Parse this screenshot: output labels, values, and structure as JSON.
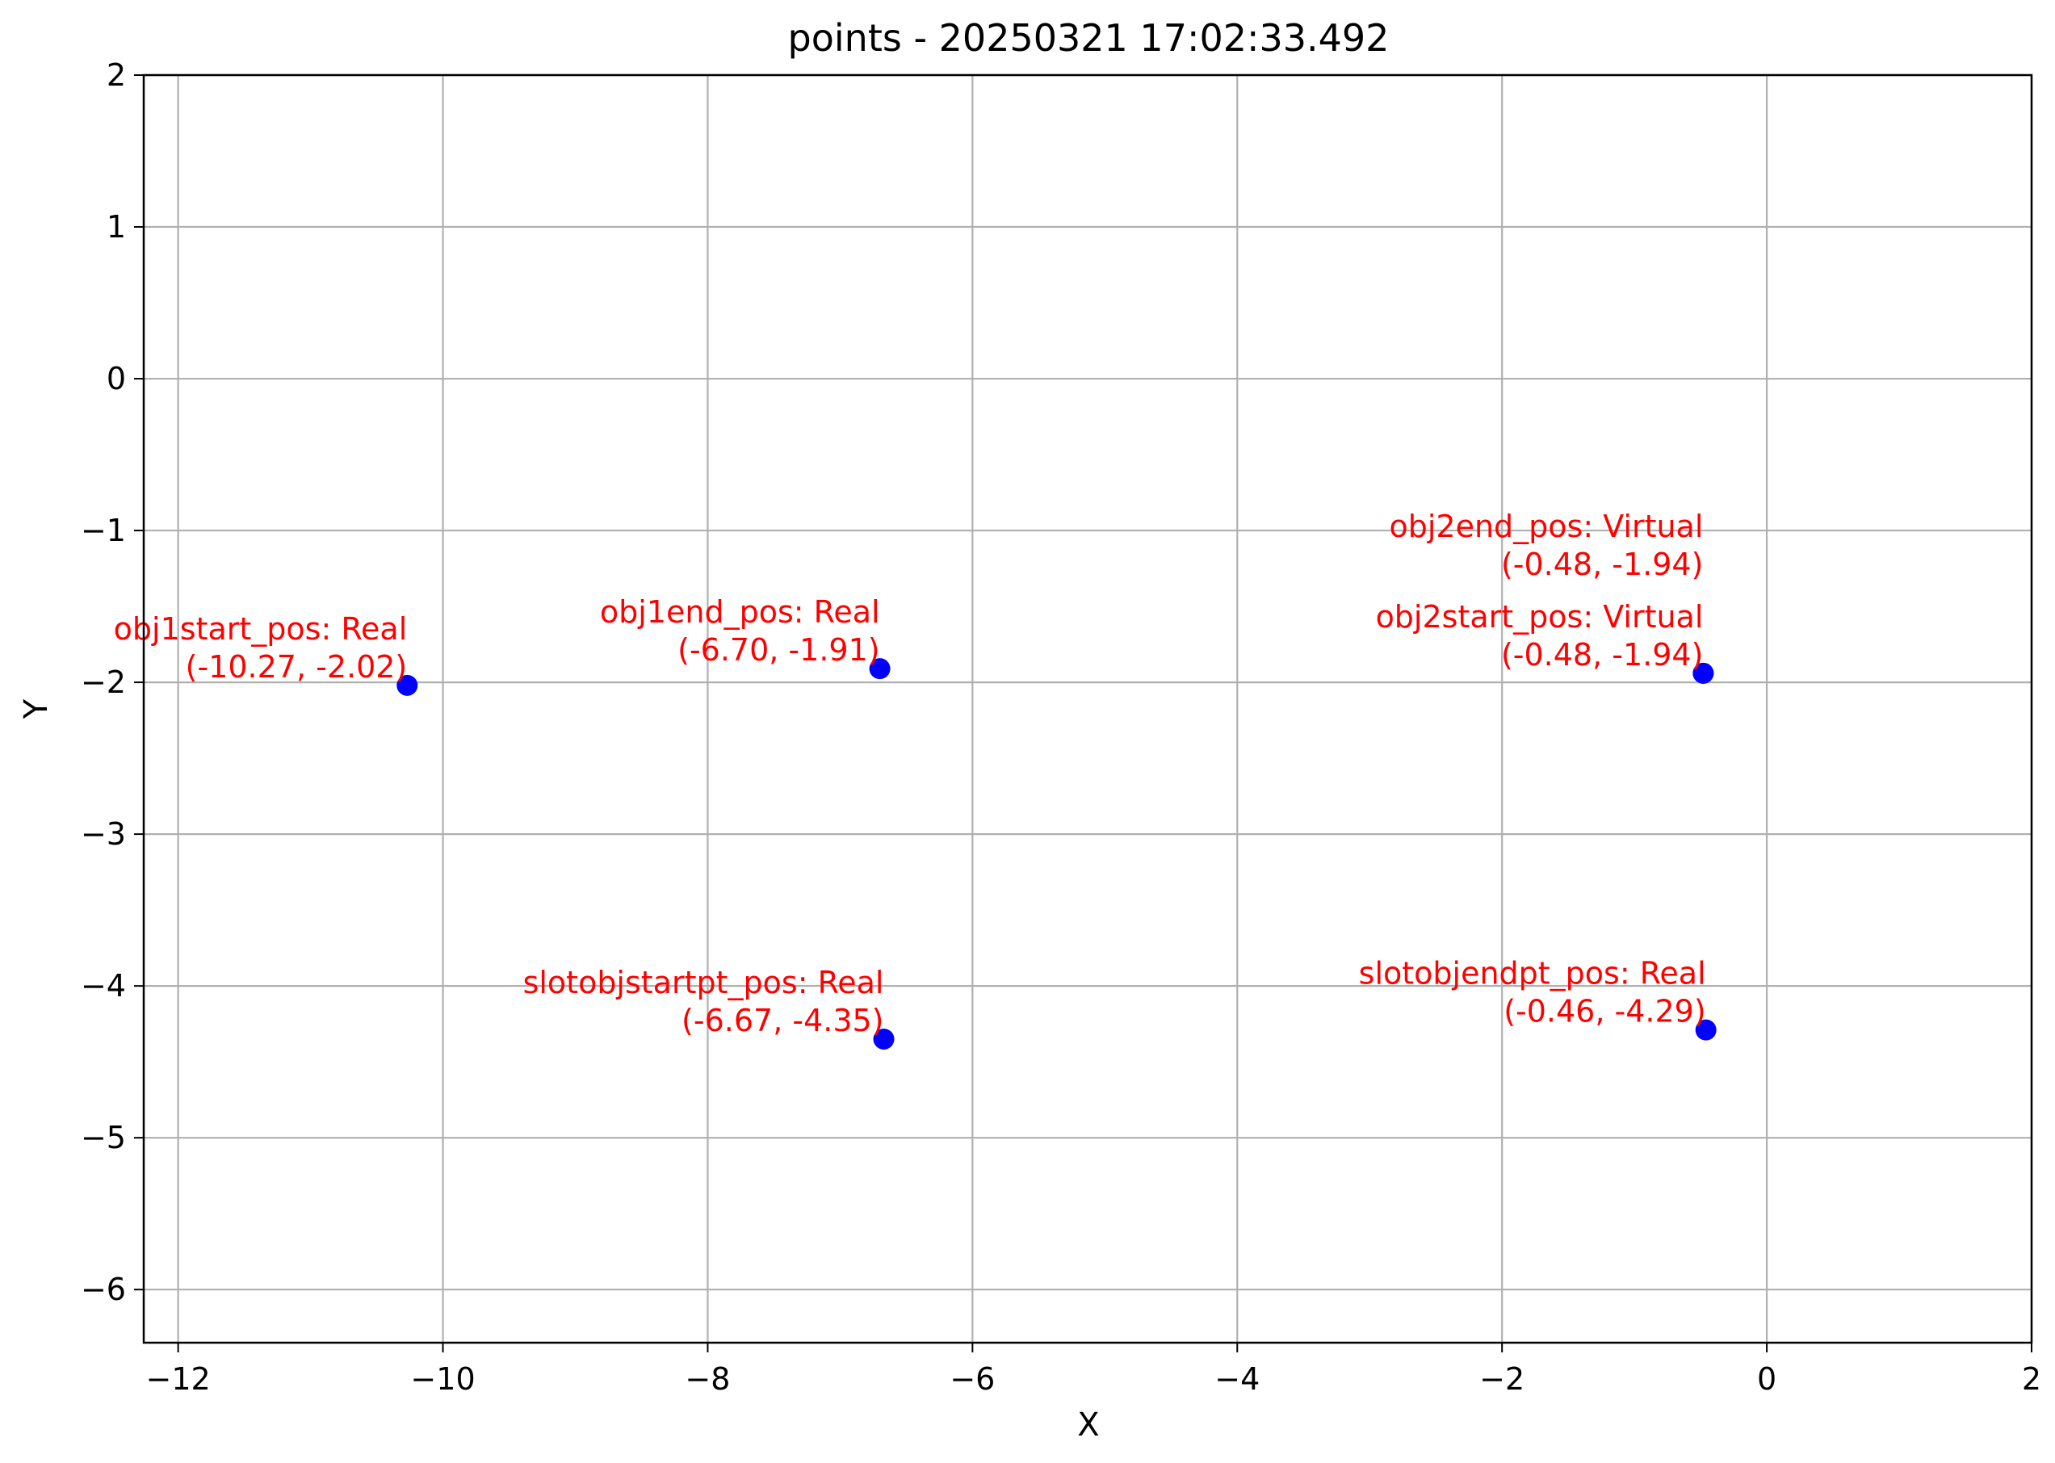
{
  "chart_data": {
    "type": "scatter",
    "title": "points - 20250321 17:02:33.492",
    "xlabel": "X",
    "ylabel": "Y",
    "xlim": [
      -12.26,
      2.0
    ],
    "ylim": [
      -6.35,
      2.0
    ],
    "grid": true,
    "x_ticks": [
      -12,
      -10,
      -8,
      -6,
      -4,
      -2,
      0,
      2
    ],
    "y_ticks": [
      -6,
      -5,
      -4,
      -3,
      -2,
      -1,
      0,
      1,
      2
    ],
    "x_tick_labels": [
      "−12",
      "−10",
      "−8",
      "−6",
      "−4",
      "−2",
      "0",
      "2"
    ],
    "y_tick_labels": [
      "−6",
      "−5",
      "−4",
      "−3",
      "−2",
      "−1",
      "0",
      "1",
      "2"
    ],
    "point_color": "#0000ff",
    "annotation_color": "#ff0000",
    "points": [
      {
        "label_line1": "obj1start_pos: Real",
        "label_line2": "(-10.27, -2.02)",
        "x": -10.27,
        "y": -2.02
      },
      {
        "label_line1": "obj1end_pos: Real",
        "label_line2": "(-6.70, -1.91)",
        "x": -6.7,
        "y": -1.91
      },
      {
        "label_line1": "obj2start_pos: Virtual",
        "label_line2": "(-0.48, -1.94)",
        "x": -0.48,
        "y": -1.94
      },
      {
        "label_line1": "obj2end_pos: Virtual",
        "label_line2": "(-0.48, -1.94)",
        "x": -0.48,
        "y": -1.94,
        "stacked_above": true
      },
      {
        "label_line1": "slotobjstartpt_pos: Real",
        "label_line2": "(-6.67, -4.35)",
        "x": -6.67,
        "y": -4.35
      },
      {
        "label_line1": "slotobjendpt_pos: Real",
        "label_line2": "(-0.46, -4.29)",
        "x": -0.46,
        "y": -4.29
      }
    ]
  }
}
